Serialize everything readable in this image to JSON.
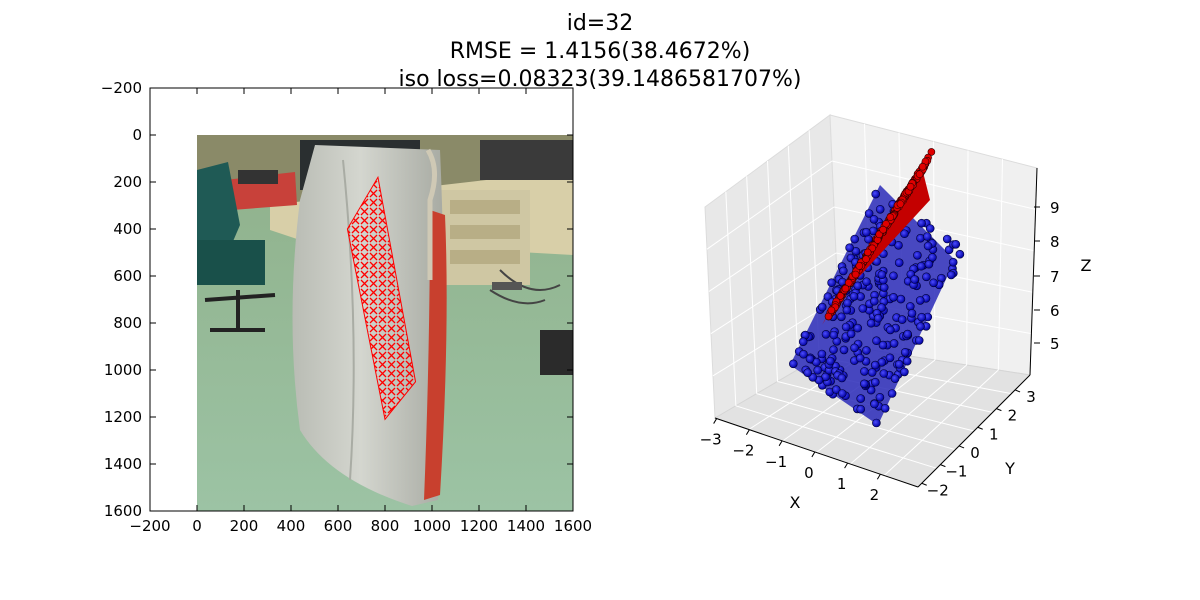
{
  "title_lines": [
    "id=32",
    "RMSE = 1.4156(38.4672%)",
    "iso loss=0.08323(39.1486581707%)"
  ],
  "chart_data": [
    {
      "type": "scatter",
      "panel": "image-overlay",
      "xlim": [
        -200,
        1600
      ],
      "ylim": [
        1600,
        -200
      ],
      "xticks": [
        "−200",
        "0",
        "200",
        "400",
        "600",
        "800",
        "1000",
        "1200",
        "1400",
        "1600"
      ],
      "yticks": [
        "−200",
        "0",
        "200",
        "400",
        "600",
        "800",
        "1000",
        "1200",
        "1400",
        "1600"
      ],
      "image_extent": {
        "x": [
          0,
          1600
        ],
        "y": [
          0,
          1600
        ]
      },
      "marker": "x",
      "marker_color": "#ff0000",
      "overlay_corners": [
        [
          640,
          400
        ],
        [
          770,
          180
        ],
        [
          930,
          1050
        ],
        [
          800,
          1210
        ]
      ],
      "grid": false
    },
    {
      "type": "scatter3d",
      "panel": "3d-point-cloud",
      "xlabel": "X",
      "ylabel": "Y",
      "zlabel": "Z",
      "xticks": [
        "−3",
        "−2",
        "−1",
        "0",
        "1",
        "2"
      ],
      "yticks": [
        "−2",
        "−1",
        "0",
        "1",
        "2",
        "3"
      ],
      "zticks": [
        "5",
        "6",
        "7",
        "8",
        "9"
      ],
      "series": [
        {
          "color": "#0000cc",
          "marker": "o"
        },
        {
          "color": "#e00000",
          "marker": "o"
        }
      ],
      "grid": true
    }
  ]
}
